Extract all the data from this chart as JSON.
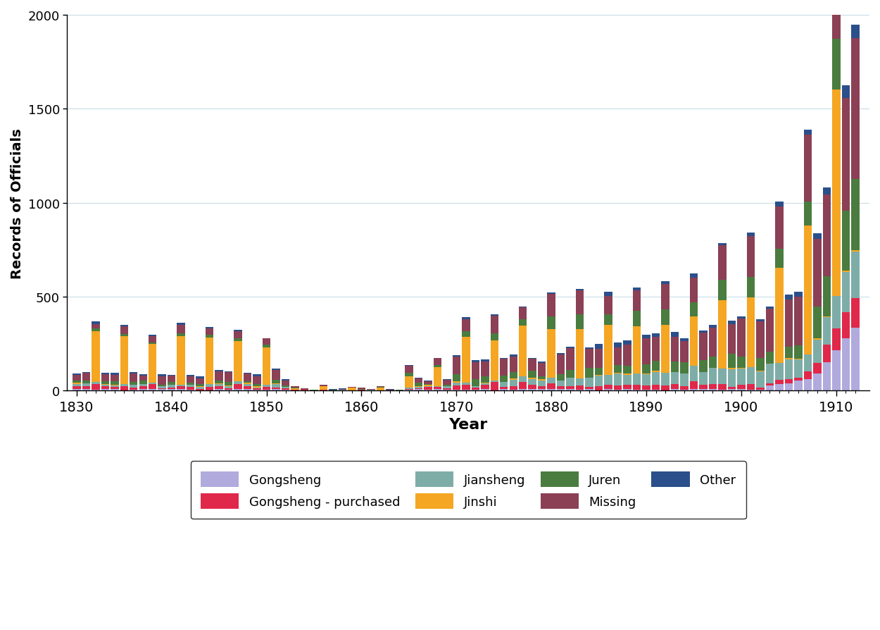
{
  "title": "",
  "xlabel": "Year",
  "ylabel": "Records of Officials",
  "xlim": [
    1829.0,
    1913.5
  ],
  "ylim": [
    0,
    2000
  ],
  "yticks": [
    0,
    500,
    1000,
    1500,
    2000
  ],
  "xticks": [
    1830,
    1840,
    1850,
    1860,
    1870,
    1880,
    1890,
    1900,
    1910
  ],
  "colors": {
    "Gongsheng": "#B0AADD",
    "Gongsheng_purchased": "#E0284A",
    "Jiansheng": "#7EADA8",
    "Jinshi": "#F5A623",
    "Juren": "#4A7C3F",
    "Missing": "#8B4055",
    "Other": "#2B4F8A"
  },
  "background_color": "#ffffff",
  "grid_color": "#c8dce8",
  "bar_width": 0.85
}
